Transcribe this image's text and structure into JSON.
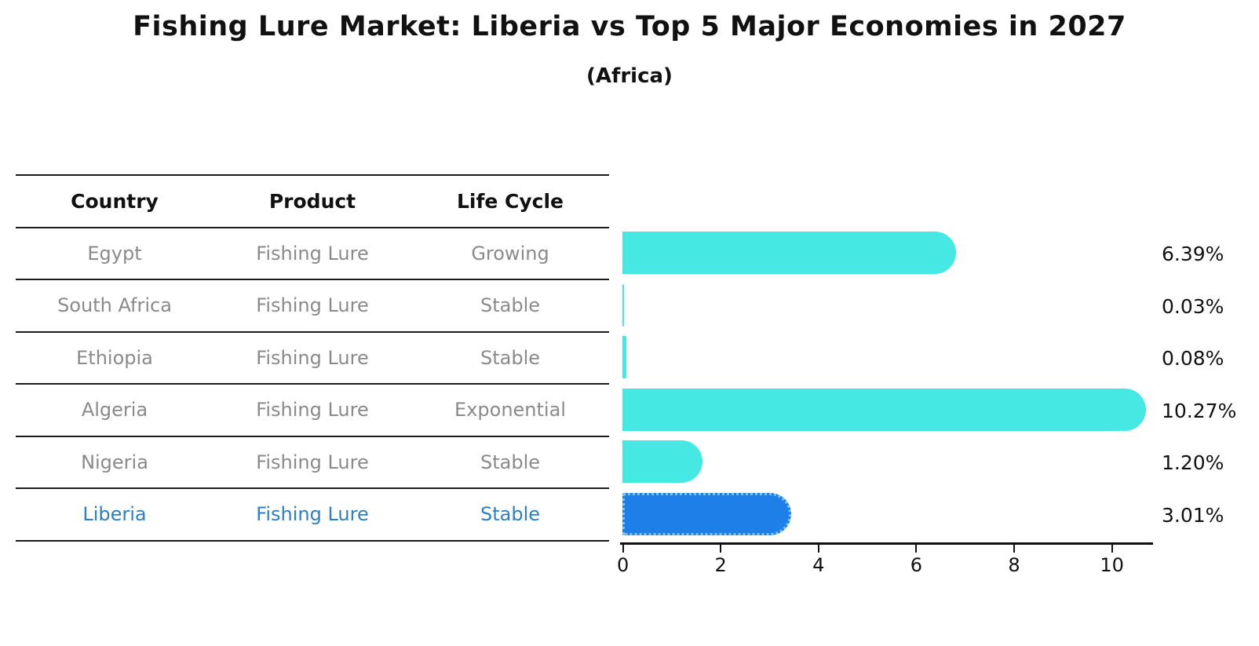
{
  "header": {
    "title": "Fishing Lure Market: Liberia vs Top 5 Major Economies in 2027",
    "subtitle": "(Africa)"
  },
  "table": {
    "columns": [
      "Country",
      "Product",
      "Life Cycle"
    ],
    "rows": [
      {
        "country": "Egypt",
        "product": "Fishing Lure",
        "life_cycle": "Growing",
        "highlight": false
      },
      {
        "country": "South Africa",
        "product": "Fishing Lure",
        "life_cycle": "Stable",
        "highlight": false
      },
      {
        "country": "Ethiopia",
        "product": "Fishing Lure",
        "life_cycle": "Stable",
        "highlight": false
      },
      {
        "country": "Algeria",
        "product": "Fishing Lure",
        "life_cycle": "Exponential",
        "highlight": false
      },
      {
        "country": "Nigeria",
        "product": "Fishing Lure",
        "life_cycle": "Stable",
        "highlight": false
      },
      {
        "country": "Liberia",
        "product": "Fishing Lure",
        "life_cycle": "Stable",
        "highlight": true
      }
    ]
  },
  "chart_data": {
    "type": "bar",
    "orientation": "horizontal",
    "title": "Fishing Lure Market: Liberia vs Top 5 Major Economies in 2027",
    "subtitle": "(Africa)",
    "categories": [
      "Egypt",
      "South Africa",
      "Ethiopia",
      "Algeria",
      "Nigeria",
      "Liberia"
    ],
    "values": [
      6.39,
      0.03,
      0.08,
      10.27,
      1.2,
      3.01
    ],
    "value_labels": [
      "6.39%",
      "0.03%",
      "0.08%",
      "10.27%",
      "1.20%",
      "3.01%"
    ],
    "x_ticks": [
      0,
      2,
      4,
      6,
      8,
      10
    ],
    "xlim": [
      0,
      10.8
    ],
    "grid": false,
    "legend": false,
    "highlight_category": "Liberia",
    "bar_color": "#45e8e2",
    "highlight_bar_color": "#1e7fe8",
    "highlight_border_color": "#7ec2f4",
    "text_color": "#111111",
    "muted_text_color": "#8a8a8a",
    "highlight_text_color": "#2b7fc4"
  }
}
